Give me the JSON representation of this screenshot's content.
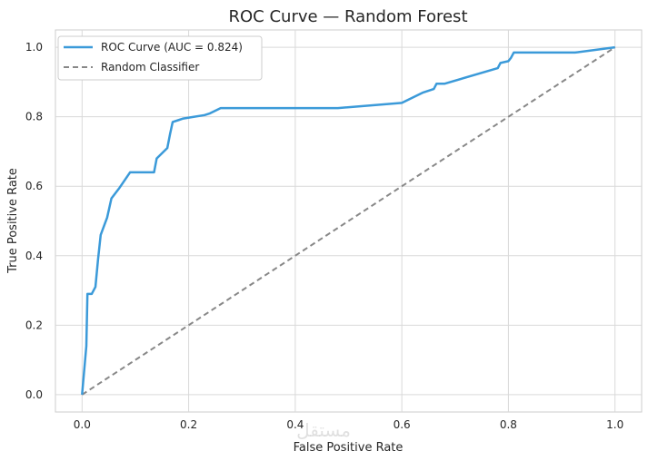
{
  "chart_data": {
    "type": "line",
    "title": "ROC Curve — Random Forest",
    "xlabel": "False Positive Rate",
    "ylabel": "True Positive Rate",
    "xlim": [
      -0.05,
      1.05
    ],
    "ylim": [
      -0.05,
      1.05
    ],
    "xticks": [
      "0.0",
      "0.2",
      "0.4",
      "0.6",
      "0.8",
      "1.0"
    ],
    "yticks": [
      "0.0",
      "0.2",
      "0.4",
      "0.6",
      "0.8",
      "1.0"
    ],
    "grid": true,
    "legend_position": "top-left",
    "series": [
      {
        "name": "ROC Curve (AUC = 0.824)",
        "color": "#3b9ad9",
        "style": "solid",
        "x": [
          0.0,
          0.008,
          0.01,
          0.018,
          0.025,
          0.03,
          0.035,
          0.047,
          0.055,
          0.07,
          0.09,
          0.135,
          0.14,
          0.16,
          0.165,
          0.17,
          0.18,
          0.19,
          0.23,
          0.24,
          0.26,
          0.48,
          0.6,
          0.64,
          0.66,
          0.665,
          0.67,
          0.68,
          0.78,
          0.785,
          0.8,
          0.805,
          0.81,
          0.925,
          1.0
        ],
        "y": [
          0.0,
          0.14,
          0.29,
          0.29,
          0.31,
          0.39,
          0.46,
          0.51,
          0.565,
          0.595,
          0.64,
          0.64,
          0.68,
          0.71,
          0.75,
          0.785,
          0.79,
          0.795,
          0.805,
          0.81,
          0.825,
          0.825,
          0.84,
          0.87,
          0.88,
          0.895,
          0.895,
          0.895,
          0.94,
          0.955,
          0.96,
          0.97,
          0.985,
          0.985,
          1.0
        ]
      },
      {
        "name": "Random Classifier",
        "color": "#888888",
        "style": "dashed",
        "x": [
          0.0,
          1.0
        ],
        "y": [
          0.0,
          1.0
        ]
      }
    ]
  },
  "watermark": "مستقل"
}
